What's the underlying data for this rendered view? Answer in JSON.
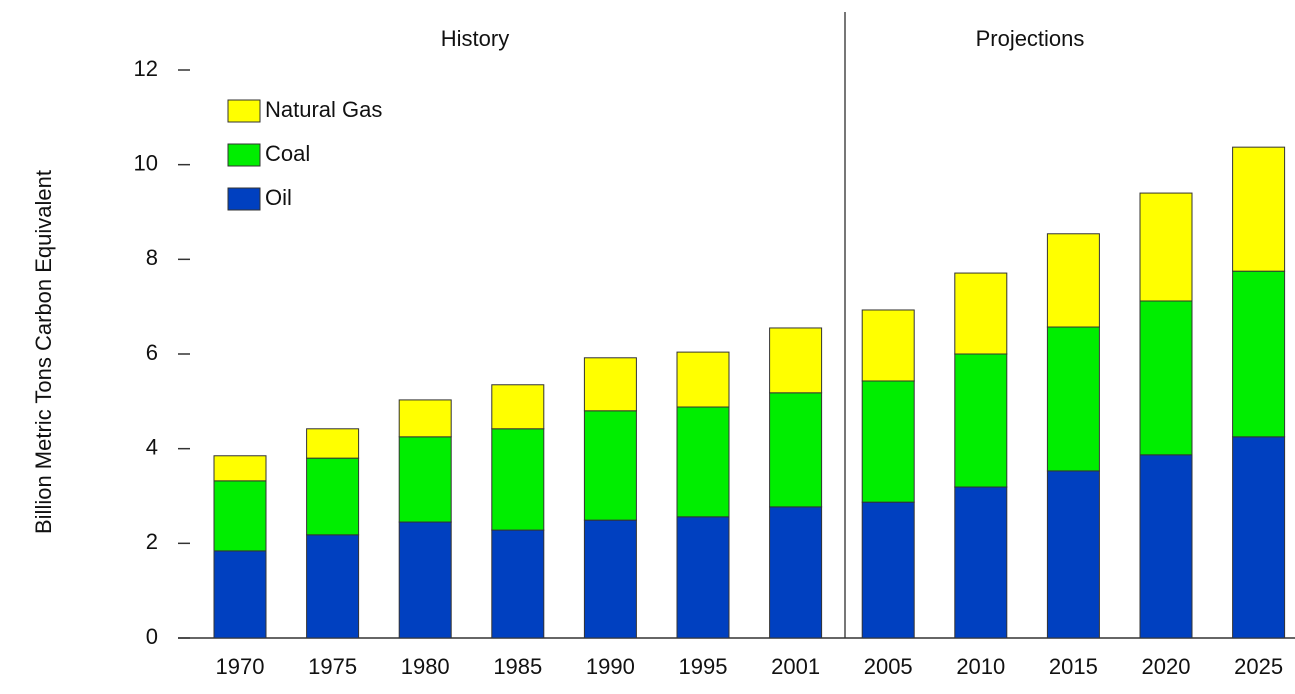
{
  "chart_data": {
    "type": "stacked_bar",
    "y_label": "Billion Metric Tons Carbon Equivalent",
    "annotations": [
      "History",
      "Projections"
    ],
    "categories": [
      "1970",
      "1975",
      "1980",
      "1985",
      "1990",
      "1995",
      "2001",
      "2005",
      "2010",
      "2015",
      "2020",
      "2025"
    ],
    "series": [
      {
        "name": "Oil",
        "color": "#0040c0",
        "values": [
          1.84,
          2.18,
          2.45,
          2.28,
          2.49,
          2.56,
          2.77,
          2.87,
          3.19,
          3.53,
          3.87,
          4.25
        ]
      },
      {
        "name": "Coal",
        "color": "#00ee00",
        "values": [
          1.48,
          1.62,
          1.8,
          2.14,
          2.31,
          2.32,
          2.41,
          2.56,
          2.81,
          3.04,
          3.25,
          3.5
        ]
      },
      {
        "name": "Natural Gas",
        "color": "#ffff00",
        "values": [
          0.53,
          0.62,
          0.78,
          0.93,
          1.12,
          1.16,
          1.37,
          1.5,
          1.71,
          1.97,
          2.28,
          2.62
        ]
      }
    ],
    "ylim": [
      0,
      12
    ],
    "yticks": [
      0,
      2,
      4,
      6,
      8,
      10,
      12
    ],
    "legend": "upper left"
  }
}
